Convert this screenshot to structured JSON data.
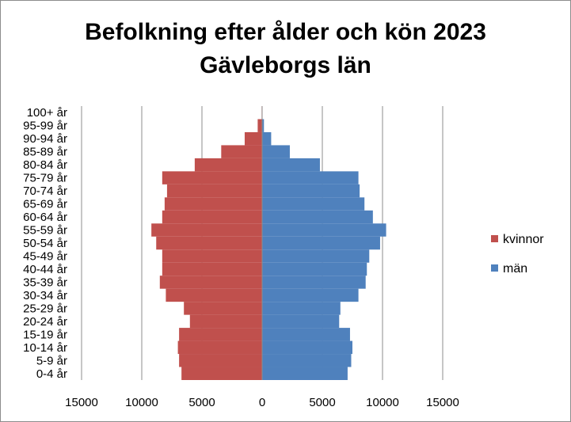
{
  "chart_data": {
    "type": "bar",
    "orientation": "horizontal",
    "title": "Befolkning efter ålder och kön 2023",
    "subtitle": "Gävleborgs län",
    "categories": [
      "0-4 år",
      "5-9 år",
      "10-14 år",
      "15-19 år",
      "20-24 år",
      "25-29 år",
      "30-34 år",
      "35-39 år",
      "40-44 år",
      "45-49 år",
      "50-54 år",
      "55-59 år",
      "60-64 år",
      "65-69 år",
      "70-74 år",
      "75-79 år",
      "80-84 år",
      "85-89 år",
      "90-94 år",
      "95-99 år",
      "100+ år"
    ],
    "series": [
      {
        "name": "kvinnor",
        "color": "#c0504d",
        "values": [
          6700,
          6900,
          7000,
          6900,
          6000,
          6500,
          8000,
          8500,
          8300,
          8300,
          8800,
          9200,
          8300,
          8100,
          7900,
          8300,
          5600,
          3400,
          1450,
          370,
          40
        ]
      },
      {
        "name": "män",
        "color": "#4f81bd",
        "values": [
          7100,
          7400,
          7500,
          7300,
          6400,
          6500,
          8000,
          8600,
          8700,
          8900,
          9800,
          10300,
          9200,
          8500,
          8100,
          8000,
          4800,
          2300,
          750,
          150,
          20
        ]
      }
    ],
    "xlim": [
      -15000,
      15000
    ],
    "xticks": [
      "15000",
      "10000",
      "5000",
      "0",
      "5000",
      "10000",
      "15000"
    ],
    "grid": true,
    "legend": "right"
  }
}
